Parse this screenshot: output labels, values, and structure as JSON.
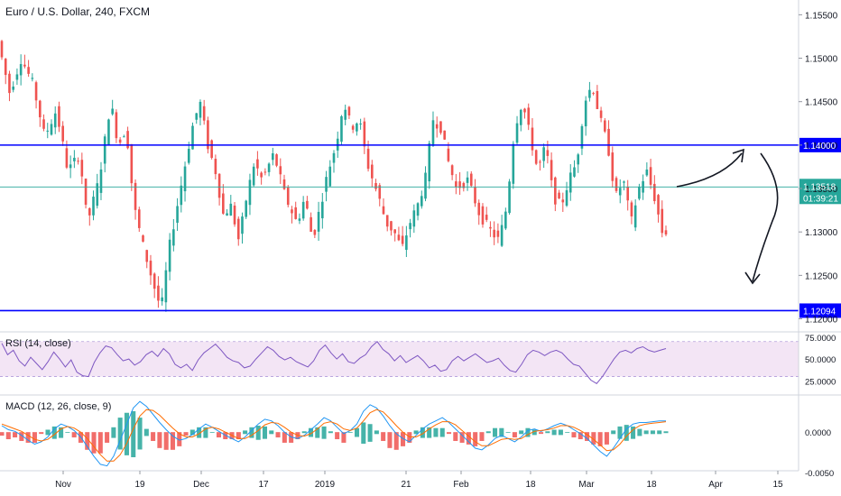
{
  "chart_data": {
    "type": "candlestick",
    "title": "Euro / U.S. Dollar, 240, FXCM",
    "x_tick_labels": [
      "Nov",
      "19",
      "Dec",
      "17",
      "2019",
      "21",
      "Feb",
      "18",
      "Mar",
      "18",
      "Apr",
      "15"
    ],
    "price_axis": {
      "ticks": [
        "1.15500",
        "1.15000",
        "1.14500",
        "1.14000",
        "1.13500",
        "1.13000",
        "1.12500",
        "1.12000"
      ],
      "ylim": [
        1.1186,
        1.1567
      ]
    },
    "current_price": {
      "value": "1.13518",
      "countdown": "01:39:21"
    },
    "horizontal_lines": [
      {
        "label": "1.14000",
        "value": 1.14
      },
      {
        "label": "1.12094",
        "value": 1.12094
      }
    ],
    "price_path": [
      [
        0,
        1.152
      ],
      [
        3,
        1.146
      ],
      [
        6,
        1.15
      ],
      [
        9,
        1.147
      ],
      [
        12,
        1.141
      ],
      [
        15,
        1.144
      ],
      [
        18,
        1.137
      ],
      [
        21,
        1.139
      ],
      [
        23,
        1.131
      ],
      [
        26,
        1.136
      ],
      [
        29,
        1.145
      ],
      [
        31,
        1.14
      ],
      [
        33,
        1.142
      ],
      [
        35,
        1.133
      ],
      [
        37,
        1.129
      ],
      [
        40,
        1.124
      ],
      [
        42,
        1.121
      ],
      [
        44,
        1.128
      ],
      [
        47,
        1.135
      ],
      [
        50,
        1.142
      ],
      [
        52,
        1.145
      ],
      [
        54,
        1.14
      ],
      [
        56,
        1.137
      ],
      [
        58,
        1.132
      ],
      [
        60,
        1.133
      ],
      [
        62,
        1.129
      ],
      [
        64,
        1.134
      ],
      [
        66,
        1.138
      ],
      [
        68,
        1.136
      ],
      [
        71,
        1.139
      ],
      [
        74,
        1.134
      ],
      [
        77,
        1.131
      ],
      [
        79,
        1.134
      ],
      [
        81,
        1.129
      ],
      [
        83,
        1.133
      ],
      [
        85,
        1.137
      ],
      [
        87,
        1.14
      ],
      [
        89,
        1.145
      ],
      [
        91,
        1.142
      ],
      [
        93,
        1.143
      ],
      [
        95,
        1.138
      ],
      [
        98,
        1.134
      ],
      [
        100,
        1.131
      ],
      [
        102,
        1.13
      ],
      [
        104,
        1.128
      ],
      [
        106,
        1.131
      ],
      [
        108,
        1.133
      ],
      [
        110,
        1.136
      ],
      [
        112,
        1.143
      ],
      [
        114,
        1.142
      ],
      [
        116,
        1.138
      ],
      [
        118,
        1.135
      ],
      [
        121,
        1.136
      ],
      [
        124,
        1.132
      ],
      [
        127,
        1.13
      ],
      [
        129,
        1.129
      ],
      [
        131,
        1.133
      ],
      [
        133,
        1.142
      ],
      [
        135,
        1.145
      ],
      [
        137,
        1.141
      ],
      [
        139,
        1.137
      ],
      [
        141,
        1.14
      ],
      [
        143,
        1.134
      ],
      [
        145,
        1.133
      ],
      [
        147,
        1.136
      ],
      [
        149,
        1.138
      ],
      [
        151,
        1.145
      ],
      [
        153,
        1.147
      ],
      [
        155,
        1.143
      ],
      [
        157,
        1.14
      ],
      [
        159,
        1.134
      ],
      [
        161,
        1.136
      ],
      [
        163,
        1.131
      ],
      [
        165,
        1.135
      ],
      [
        167,
        1.137
      ],
      [
        169,
        1.134
      ],
      [
        171,
        1.13
      ]
    ],
    "rsi": {
      "label": "RSI (14, close)",
      "ticks": [
        "75.0000",
        "50.0000",
        "25.0000"
      ],
      "ylim": [
        10,
        80
      ],
      "band": [
        30,
        70
      ],
      "values": [
        68,
        55,
        60,
        48,
        42,
        52,
        45,
        38,
        47,
        58,
        50,
        41,
        49,
        35,
        31,
        30,
        46,
        57,
        65,
        63,
        55,
        48,
        50,
        43,
        47,
        55,
        59,
        53,
        62,
        56,
        44,
        40,
        44,
        37,
        49,
        57,
        62,
        67,
        60,
        52,
        48,
        46,
        40,
        42,
        50,
        57,
        64,
        60,
        53,
        49,
        52,
        47,
        44,
        41,
        48,
        60,
        66,
        57,
        50,
        56,
        47,
        45,
        51,
        55,
        64,
        70,
        61,
        56,
        48,
        54,
        46,
        50,
        54,
        48,
        40,
        43,
        36,
        38,
        48,
        53,
        48,
        52,
        56,
        51,
        46,
        48,
        51,
        43,
        37,
        35,
        44,
        55,
        60,
        58,
        54,
        58,
        60,
        57,
        50,
        44,
        42,
        34,
        26,
        22,
        30,
        40,
        50,
        58,
        60,
        57,
        62,
        64,
        60,
        58,
        60,
        62
      ]
    },
    "macd": {
      "label": "MACD (12, 26, close, 9)",
      "ticks": [
        "0.0000",
        "-0.0050"
      ],
      "ylim": [
        -0.0048,
        0.0045
      ],
      "macd_line": [
        0.0008,
        0.0003,
        0.0001,
        -0.0004,
        -0.001,
        -0.0015,
        -0.0012,
        -0.0006,
        0.0004,
        0.001,
        0.0007,
        0.0002,
        -0.0006,
        -0.0018,
        -0.003,
        -0.004,
        -0.0042,
        -0.003,
        -0.001,
        0.001,
        0.003,
        0.0038,
        0.0032,
        0.0022,
        0.0012,
        0.0003,
        -0.0005,
        -0.001,
        -0.0008,
        -0.0003,
        0.0004,
        0.001,
        0.0006,
        0.0001,
        -0.0004,
        -0.0008,
        -0.0012,
        -0.0006,
        0.0002,
        0.001,
        0.0016,
        0.0014,
        0.0008,
        0.0,
        -0.0006,
        -0.0008,
        -0.0004,
        0.0003,
        0.001,
        0.0018,
        0.0014,
        0.0006,
        -0.0002,
        0.0002,
        0.001,
        0.0026,
        0.0034,
        0.003,
        0.002,
        0.0008,
        -0.0002,
        -0.0008,
        -0.0012,
        -0.0004,
        0.0004,
        0.001,
        0.0014,
        0.0018,
        0.0012,
        0.0004,
        -0.0004,
        -0.0012,
        -0.002,
        -0.0022,
        -0.0016,
        -0.0008,
        -0.0004,
        -0.0008,
        -0.0012,
        -0.0006,
        0.0002,
        0.0004,
        0.0001,
        0.0004,
        0.0008,
        0.0011,
        0.0008,
        0.0003,
        -0.0002,
        -0.0008,
        -0.0016,
        -0.0024,
        -0.003,
        -0.002,
        -0.0008,
        0.0004,
        0.001,
        0.0012,
        0.0012,
        0.0013,
        0.0014,
        0.0014
      ],
      "signal_line": [
        0.001,
        0.0007,
        0.0004,
        0.0001,
        -0.0004,
        -0.0009,
        -0.0011,
        -0.0009,
        -0.0003,
        0.0004,
        0.0007,
        0.0005,
        0.0,
        -0.0008,
        -0.0018,
        -0.0028,
        -0.0036,
        -0.0036,
        -0.0028,
        -0.0014,
        0.0004,
        0.002,
        0.0028,
        0.0027,
        0.0021,
        0.0013,
        0.0005,
        -0.0002,
        -0.0006,
        -0.0006,
        -0.0002,
        0.0004,
        0.0006,
        0.0004,
        0.0,
        -0.0004,
        -0.0008,
        -0.0008,
        -0.0004,
        0.0002,
        0.0009,
        0.0012,
        0.0011,
        0.0006,
        0.0,
        -0.0004,
        -0.0005,
        -0.0002,
        0.0004,
        0.0011,
        0.0013,
        0.001,
        0.0004,
        0.0002,
        0.0005,
        0.0014,
        0.0024,
        0.0028,
        0.0025,
        0.0017,
        0.0008,
        0.0,
        -0.0006,
        -0.0006,
        -0.0002,
        0.0004,
        0.0009,
        0.0013,
        0.0013,
        0.0009,
        0.0002,
        -0.0005,
        -0.0012,
        -0.0017,
        -0.0017,
        -0.0013,
        -0.0009,
        -0.0008,
        -0.0009,
        -0.0008,
        -0.0003,
        0.0001,
        0.0002,
        0.0003,
        0.0005,
        0.0008,
        0.0008,
        0.0006,
        0.0002,
        -0.0003,
        -0.0009,
        -0.0016,
        -0.0023,
        -0.0022,
        -0.0015,
        -0.0005,
        0.0003,
        0.0008,
        0.001,
        0.0011,
        0.0012,
        0.0013
      ]
    },
    "colors": {
      "up": "#26a69a",
      "down": "#ef5350",
      "level_line": "#0000ff",
      "current_price_line": "#26a69a",
      "rsi_line": "#7e57c2",
      "rsi_band": "#f3e5f5",
      "macd_line": "#2196f3",
      "signal_line": "#ff6d00",
      "axis_text": "#131722",
      "grid": "#e6e9ef"
    }
  }
}
